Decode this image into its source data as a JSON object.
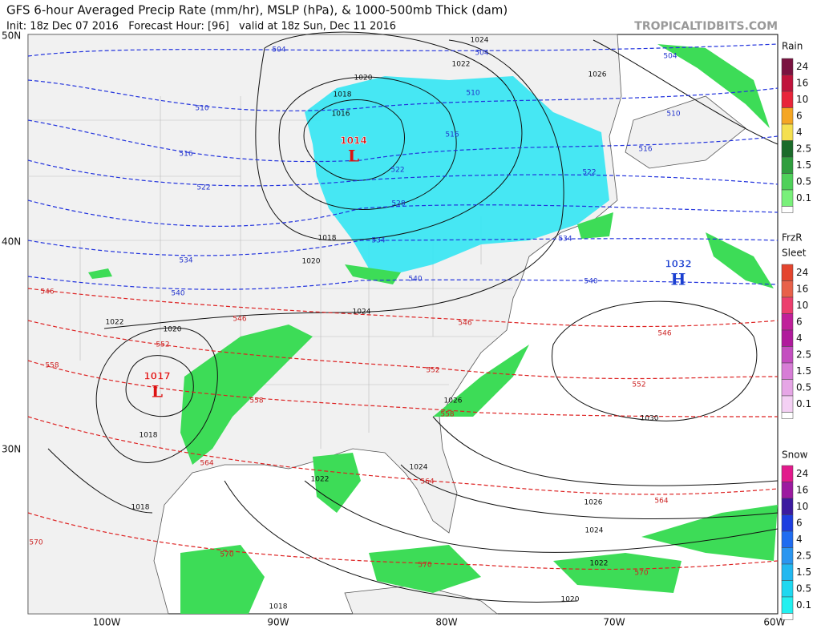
{
  "header": {
    "title": "GFS 6-hour Averaged Precip Rate (mm/hr), MSLP (hPa), & 1000-500mb Thick (dam)",
    "subtitle": "Init: 18z Dec 07 2016   Forecast Hour: [96]   valid at 18z Sun, Dec 11 2016",
    "source": "TROPICALTIDBITS.COM"
  },
  "map": {
    "lat_labels": [
      "50N",
      "40N",
      "30N"
    ],
    "lon_labels": [
      "100W",
      "90W",
      "80W",
      "70W",
      "60W"
    ],
    "pressure_centers": [
      {
        "value": "1014",
        "type": "L"
      },
      {
        "value": "1017",
        "type": "L"
      },
      {
        "value": "1032",
        "type": "H"
      }
    ],
    "isobar_labels": [
      "1024",
      "1022",
      "1020",
      "1018",
      "1016",
      "1026",
      "1018",
      "1020",
      "1024",
      "1022",
      "1020",
      "1018",
      "1018",
      "1026",
      "1030",
      "1024",
      "1022",
      "1026",
      "1024",
      "1022",
      "1020",
      "1018"
    ],
    "thickness_labels_blue": [
      "504",
      "504",
      "504",
      "510",
      "510",
      "510",
      "516",
      "516",
      "516",
      "522",
      "522",
      "522",
      "528",
      "534",
      "534",
      "534",
      "540",
      "540",
      "540"
    ],
    "thickness_labels_red": [
      "546",
      "546",
      "546",
      "546",
      "552",
      "552",
      "552",
      "558",
      "558",
      "558",
      "564",
      "564",
      "564",
      "570",
      "570",
      "570",
      "570"
    ]
  },
  "legend": {
    "rain": {
      "title": "Rain",
      "levels": [
        "24",
        "16",
        "10",
        "6",
        "4",
        "2.5",
        "1.5",
        "0.5",
        "0.1"
      ]
    },
    "frzr": {
      "title": "FrzR",
      "title2": "Sleet",
      "levels": [
        "24",
        "16",
        "10",
        "6",
        "4",
        "2.5",
        "1.5",
        "0.5",
        "0.1"
      ]
    },
    "snow": {
      "title": "Snow",
      "levels": [
        "24",
        "16",
        "10",
        "6",
        "4",
        "2.5",
        "1.5",
        "0.5",
        "0.1"
      ]
    }
  }
}
